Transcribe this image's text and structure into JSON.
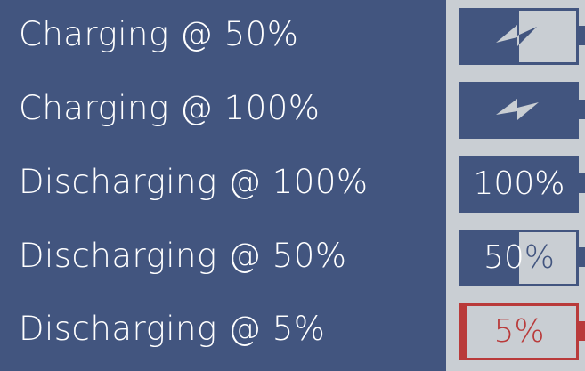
{
  "rows": [
    {
      "label": "Charging @ 50%",
      "state": "charging",
      "level_percent": 50,
      "text": ""
    },
    {
      "label": "Charging @ 100%",
      "state": "charging",
      "level_percent": 100,
      "text": ""
    },
    {
      "label": "Discharging @ 100%",
      "state": "discharging",
      "level_percent": 100,
      "text": "100%"
    },
    {
      "label": "Discharging @ 50%",
      "state": "discharging",
      "level_percent": 50,
      "text_left": "50",
      "text_right": "%"
    },
    {
      "label": "Discharging @ 5%",
      "state": "discharging",
      "level_percent": 5,
      "text": "5%"
    }
  ],
  "colors": {
    "background": "#42557f",
    "panel": "#c9ced3",
    "battery_fill": "#42557f",
    "low_battery": "#b93a3a",
    "label_text": "#ffffff"
  },
  "icons": {
    "charging": "lightning-bolt-icon"
  }
}
